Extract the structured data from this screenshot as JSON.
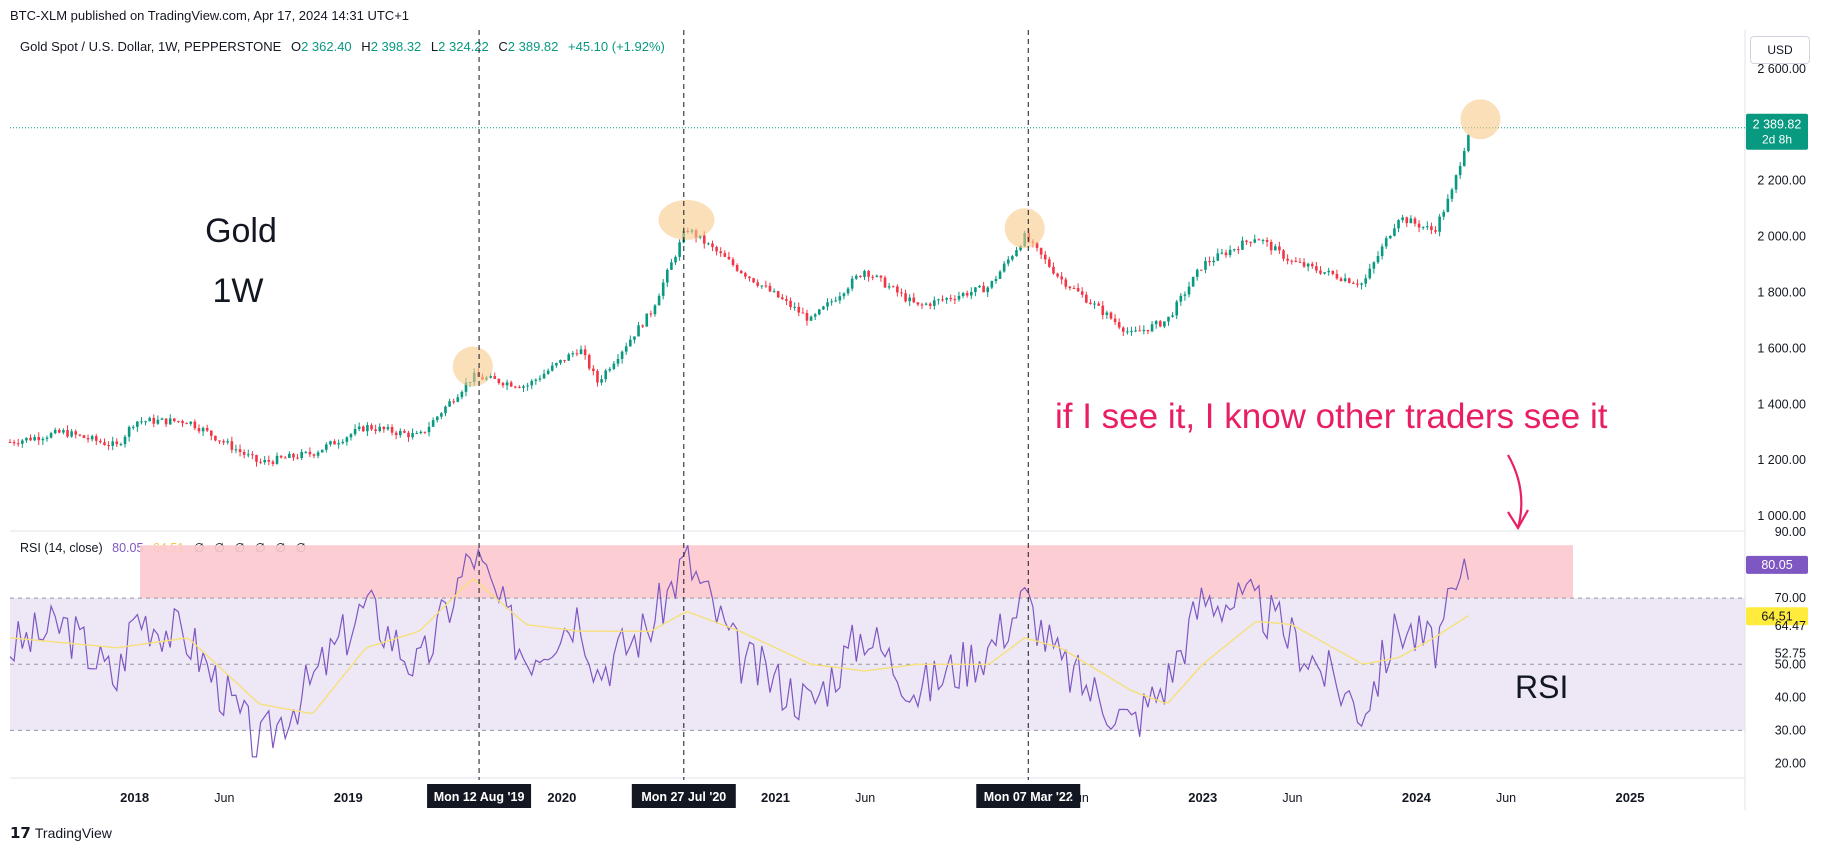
{
  "header": {
    "published": "BTC-XLM published on TradingView.com, Apr 17, 2024 14:31 UTC+1"
  },
  "legend": {
    "symbol": "Gold Spot / U.S. Dollar, 1W, PEPPERSTONE",
    "o_label": "O",
    "o_value": "2 362.40",
    "h_label": "H",
    "h_value": "2 398.32",
    "l_label": "L",
    "l_value": "2 324.22",
    "c_label": "C",
    "c_value": "2 389.82",
    "change": "+45.10 (+1.92%)"
  },
  "rsi_legend": {
    "label": "RSI (14, close)",
    "rsi_value": "80.05",
    "ma_value": "64.51",
    "extras": "∅ ∅ ∅ ∅ ∅ ∅"
  },
  "currency_button": "USD",
  "footer": {
    "brand": "TradingView",
    "logo_icon": "tradingview-logo-icon"
  },
  "colors": {
    "up": "#089981",
    "down": "#f23645",
    "rsi": "#7e57c2",
    "rsi_ma": "#f7e07a",
    "rsi_band": "#ede7f6",
    "overbought_zone": "#fcc8cd",
    "highlight": "#f7c98a",
    "annotation": "#e91e63"
  },
  "chart_data": [
    {
      "type": "candlestick",
      "title": "Gold Spot / U.S. Dollar, 1W",
      "ylim": [
        950,
        2650
      ],
      "y_ticks": [
        "1 000.00",
        "1 200.00",
        "1 400.00",
        "1 600.00",
        "1 800.00",
        "2 000.00",
        "2 200.00",
        "2 600.00"
      ],
      "x_ticks": [
        "2018",
        "Jun",
        "2019",
        "2020",
        "2021",
        "Jun",
        "Jun",
        "2023",
        "Jun",
        "2024",
        "Jun",
        "2025"
      ],
      "last_price": "2 389.82",
      "countdown": "2d 8h",
      "price_path": [
        [
          "2017-06",
          1265
        ],
        [
          "2017-09",
          1300
        ],
        [
          "2017-12",
          1250
        ],
        [
          "2018-01",
          1340
        ],
        [
          "2018-04",
          1340
        ],
        [
          "2018-08",
          1190
        ],
        [
          "2018-11",
          1225
        ],
        [
          "2019-02",
          1320
        ],
        [
          "2019-05",
          1285
        ],
        [
          "2019-08",
          1500
        ],
        [
          "2019-11",
          1465
        ],
        [
          "2020-02",
          1600
        ],
        [
          "2020-03",
          1480
        ],
        [
          "2020-06",
          1730
        ],
        [
          "2020-08",
          2030
        ],
        [
          "2020-11",
          1880
        ],
        [
          "2021-03",
          1700
        ],
        [
          "2021-06",
          1880
        ],
        [
          "2021-09",
          1750
        ],
        [
          "2022-01",
          1820
        ],
        [
          "2022-03",
          2000
        ],
        [
          "2022-05",
          1850
        ],
        [
          "2022-09",
          1650
        ],
        [
          "2022-11",
          1700
        ],
        [
          "2023-01",
          1900
        ],
        [
          "2023-04",
          2000
        ],
        [
          "2023-06",
          1910
        ],
        [
          "2023-10",
          1830
        ],
        [
          "2023-12",
          2070
        ],
        [
          "2024-02",
          2020
        ],
        [
          "2024-03",
          2160
        ],
        [
          "2024-04",
          2390
        ]
      ],
      "highlights": [
        "2019-08",
        "2020-08",
        "2022-03",
        "2024-04"
      ],
      "markers": [
        "Mon 12 Aug '19",
        "Mon 27 Jul '20",
        "Mon 07 Mar '22"
      ],
      "annotations": [
        "Gold",
        "1W",
        "if I see it, I know other traders see it"
      ]
    },
    {
      "type": "line",
      "title": "RSI (14, close)",
      "ylim": [
        15,
        90
      ],
      "y_ticks": [
        "20.00",
        "30.00",
        "40.00",
        "50.00",
        "70.00",
        "90.00"
      ],
      "levels": {
        "upper": 70,
        "middle": 50,
        "lower": 30
      },
      "rsi_last": "80.05",
      "ma_last": "64.51",
      "extra_labels": [
        "64.47",
        "52.75"
      ],
      "rsi_path": [
        [
          "2017-06",
          55
        ],
        [
          "2017-09",
          62
        ],
        [
          "2017-12",
          45
        ],
        [
          "2018-01",
          65
        ],
        [
          "2018-04",
          58
        ],
        [
          "2018-08",
          25
        ],
        [
          "2018-11",
          45
        ],
        [
          "2019-02",
          68
        ],
        [
          "2019-05",
          48
        ],
        [
          "2019-08",
          84
        ],
        [
          "2019-11",
          52
        ],
        [
          "2020-02",
          66
        ],
        [
          "2020-03",
          48
        ],
        [
          "2020-06",
          62
        ],
        [
          "2020-08",
          82
        ],
        [
          "2020-11",
          52
        ],
        [
          "2021-03",
          38
        ],
        [
          "2021-06",
          60
        ],
        [
          "2021-09",
          42
        ],
        [
          "2022-01",
          55
        ],
        [
          "2022-03",
          70
        ],
        [
          "2022-05",
          50
        ],
        [
          "2022-09",
          32
        ],
        [
          "2022-11",
          45
        ],
        [
          "2023-01",
          70
        ],
        [
          "2023-04",
          68
        ],
        [
          "2023-06",
          58
        ],
        [
          "2023-10",
          36
        ],
        [
          "2023-12",
          62
        ],
        [
          "2024-02",
          55
        ],
        [
          "2024-03",
          68
        ],
        [
          "2024-04",
          80
        ]
      ],
      "ma_path": [
        [
          "2017-06",
          58
        ],
        [
          "2017-12",
          55
        ],
        [
          "2018-04",
          58
        ],
        [
          "2018-08",
          38
        ],
        [
          "2018-11",
          35
        ],
        [
          "2019-02",
          55
        ],
        [
          "2019-05",
          60
        ],
        [
          "2019-08",
          76
        ],
        [
          "2019-11",
          62
        ],
        [
          "2020-02",
          60
        ],
        [
          "2020-06",
          60
        ],
        [
          "2020-08",
          66
        ],
        [
          "2020-11",
          60
        ],
        [
          "2021-03",
          50
        ],
        [
          "2021-06",
          48
        ],
        [
          "2021-09",
          50
        ],
        [
          "2022-01",
          50
        ],
        [
          "2022-03",
          58
        ],
        [
          "2022-05",
          55
        ],
        [
          "2022-09",
          42
        ],
        [
          "2022-11",
          38
        ],
        [
          "2023-01",
          50
        ],
        [
          "2023-04",
          63
        ],
        [
          "2023-06",
          62
        ],
        [
          "2023-10",
          50
        ],
        [
          "2023-12",
          52
        ],
        [
          "2024-02",
          58
        ],
        [
          "2024-04",
          65
        ]
      ],
      "label": "RSI"
    }
  ]
}
